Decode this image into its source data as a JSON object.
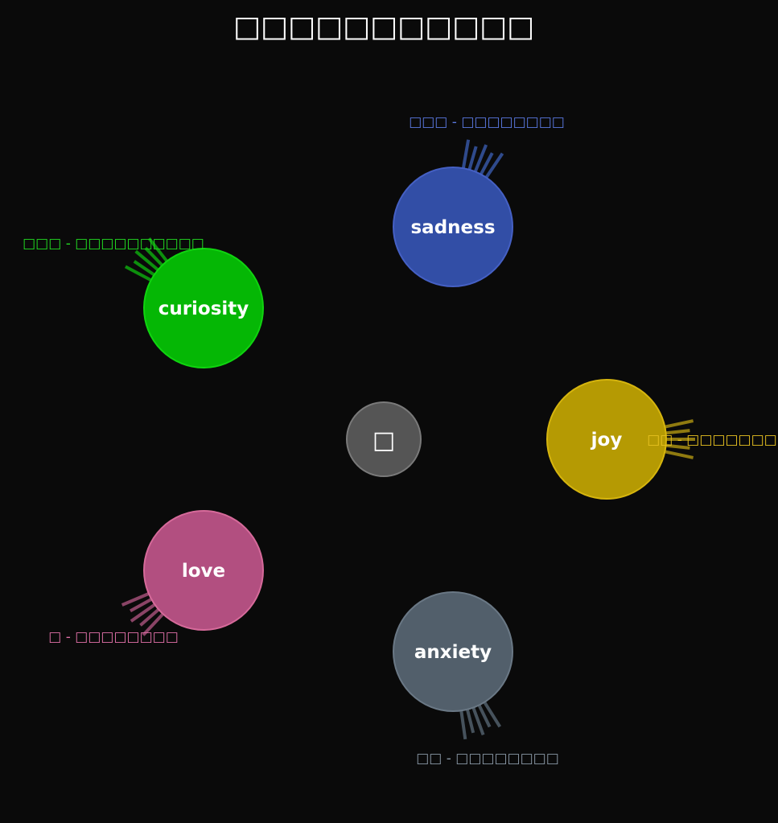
{
  "title": "□□□□□□□□□□□",
  "center": {
    "glyph": "□",
    "fill": "#555555",
    "stroke": "#7a7a7a"
  },
  "nodes": [
    {
      "id": "sadness",
      "label": "sadness",
      "caption": "□□□ - □□□□□□□□",
      "fill": "#324ea6",
      "stroke": "#4560c4",
      "text_color": "#5a78e0",
      "ray_color": "#2f4a8c"
    },
    {
      "id": "curiosity",
      "label": "curiosity",
      "caption": "□□□ - □□□□□□□□□□",
      "fill": "#05b705",
      "stroke": "#10d410",
      "text_color": "#22dd22",
      "ray_color": "#0d8f0d"
    },
    {
      "id": "joy",
      "label": "joy",
      "caption": "□□ - □□□□□□□□",
      "fill": "#b59a03",
      "stroke": "#d6b50e",
      "text_color": "#e6c020",
      "ray_color": "#8f7a10"
    },
    {
      "id": "love",
      "label": "love",
      "caption": "□ - □□□□□□□□",
      "fill": "#b24f80",
      "stroke": "#d66a9a",
      "text_color": "#e070a8",
      "ray_color": "#8a4466"
    },
    {
      "id": "anxiety",
      "label": "anxiety",
      "caption": "□□ - □□□□□□□□",
      "fill": "#525f6b",
      "stroke": "#6a7885",
      "text_color": "#8a98a6",
      "ray_color": "#46525c"
    }
  ]
}
